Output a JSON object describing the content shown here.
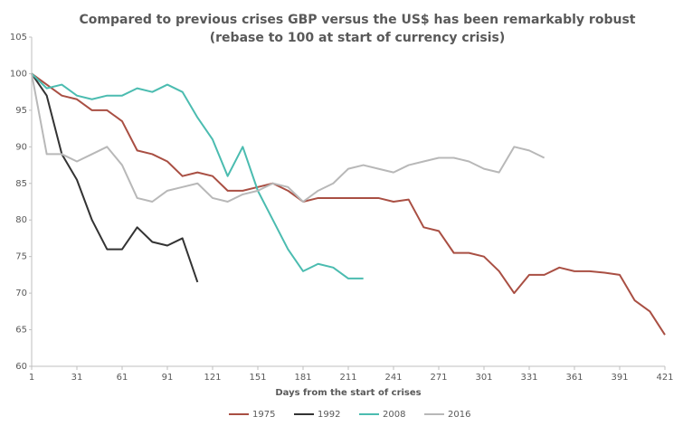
{
  "chart_data": {
    "type": "line",
    "title": "Compared to previous crises GBP versus the US$ has been remarkably robust",
    "subtitle": "(rebase to 100 at start of currency crisis)",
    "x_label": "Days from the start of crises",
    "x": [
      1,
      11,
      21,
      31,
      41,
      51,
      61,
      71,
      81,
      91,
      101,
      111,
      121,
      131,
      141,
      151,
      161,
      171,
      181,
      191,
      201,
      211,
      221,
      231,
      241,
      251,
      261,
      271,
      281,
      291,
      301,
      311,
      321,
      331,
      341,
      351,
      361,
      371,
      381,
      391,
      401,
      411,
      421
    ],
    "series": [
      {
        "name": "1975",
        "color": "#a94f43",
        "values": [
          100,
          98.5,
          97,
          96.5,
          95,
          95,
          93.5,
          89.5,
          89,
          88,
          86,
          86.5,
          86,
          84,
          84,
          84.5,
          85,
          84,
          82.5,
          83,
          83,
          83,
          83,
          83,
          82.5,
          82.8,
          79,
          78.5,
          75.5,
          75.5,
          75,
          73,
          70,
          72.5,
          72.5,
          73.5,
          73,
          73,
          72.8,
          72.5,
          69,
          67.5,
          64.3
        ]
      },
      {
        "name": "1992",
        "color": "#333333",
        "values": [
          100,
          97,
          89,
          85.5,
          80,
          76,
          76,
          79,
          77,
          76.5,
          77.5,
          71.5,
          null,
          null,
          null,
          null,
          null,
          null,
          null,
          null,
          null,
          null,
          null,
          null,
          null,
          null,
          null,
          null,
          null,
          null,
          null,
          null,
          null,
          null,
          null,
          null,
          null,
          null,
          null,
          null,
          null,
          null,
          null
        ]
      },
      {
        "name": "2008",
        "color": "#4bbcb0",
        "values": [
          100,
          98,
          98.5,
          97,
          96.5,
          97,
          97,
          98,
          97.5,
          98.5,
          97.5,
          94,
          91,
          86,
          90,
          84,
          80,
          76,
          73,
          74,
          73.5,
          72,
          72,
          null,
          null,
          null,
          null,
          null,
          null,
          null,
          null,
          null,
          null,
          null,
          null,
          null,
          null,
          null,
          null,
          null,
          null,
          null,
          null
        ]
      },
      {
        "name": "2016",
        "color": "#b8b8b8",
        "values": [
          100,
          89,
          89,
          88,
          89,
          90,
          87.5,
          83,
          82.5,
          84,
          84.5,
          85,
          83,
          82.5,
          83.5,
          84,
          85,
          84.5,
          82.5,
          84,
          85,
          87,
          87.5,
          87,
          86.5,
          87.5,
          88,
          88.5,
          88.5,
          88,
          87,
          86.5,
          90,
          89.5,
          88.5,
          null,
          null,
          null,
          null,
          null,
          null,
          null,
          null
        ]
      }
    ],
    "xlim": [
      1,
      421
    ],
    "xticks": [
      1,
      31,
      61,
      91,
      121,
      151,
      181,
      211,
      241,
      271,
      301,
      331,
      361,
      391,
      421
    ],
    "ylim": [
      60,
      105
    ],
    "yticks": [
      60,
      65,
      70,
      75,
      80,
      85,
      90,
      95,
      100,
      105
    ],
    "legend": "bottom"
  }
}
